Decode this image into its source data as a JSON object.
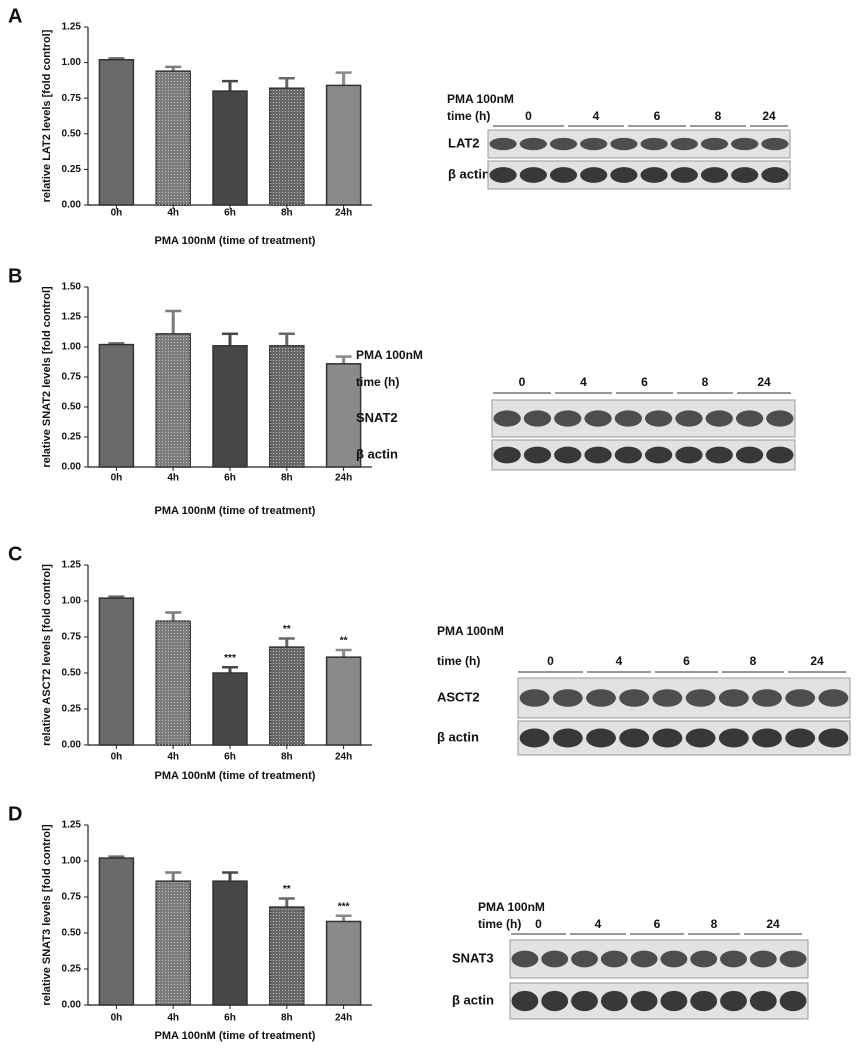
{
  "chart_data": [
    {
      "type": "bar",
      "label": "A",
      "ylabel": "relative LAT2 levels [fold control]",
      "xlabel": "PMA 100nM (time of treatment)",
      "categories": [
        "0h",
        "4h",
        "6h",
        "8h",
        "24h"
      ],
      "values": [
        1.02,
        0.94,
        0.8,
        0.82,
        0.84
      ],
      "errors": [
        0.01,
        0.03,
        0.07,
        0.07,
        0.09
      ],
      "colors": [
        "#6a6a6a",
        "#7c7c7c",
        "#474747",
        "#676767",
        "#8a8a8a"
      ],
      "ylim": [
        0,
        1.25
      ],
      "yticks": [
        {
          "value": 0,
          "label": "0.00"
        },
        {
          "value": 0.25,
          "label": "0.25"
        },
        {
          "value": 0.5,
          "label": "0.50"
        },
        {
          "value": 0.75,
          "label": "0.75"
        },
        {
          "value": 1,
          "label": "1.00"
        },
        {
          "value": 1.25,
          "label": "1.25"
        }
      ]
    },
    {
      "type": "bar",
      "label": "B",
      "ylabel": "relative SNAT2 levels [fold control]",
      "xlabel": "PMA 100nM (time of treatment)",
      "categories": [
        "0h",
        "4h",
        "6h",
        "8h",
        "24h"
      ],
      "values": [
        1.02,
        1.11,
        1.01,
        1.01,
        0.86
      ],
      "errors": [
        0.01,
        0.19,
        0.1,
        0.1,
        0.06
      ],
      "colors": [
        "#6a6a6a",
        "#7c7c7c",
        "#474747",
        "#676767",
        "#8a8a8a"
      ],
      "ylim": [
        0,
        1.5
      ],
      "yticks": [
        {
          "value": 0,
          "label": "0.00"
        },
        {
          "value": 0.25,
          "label": "0.25"
        },
        {
          "value": 0.5,
          "label": "0.50"
        },
        {
          "value": 0.75,
          "label": "0.75"
        },
        {
          "value": 1,
          "label": "1.00"
        },
        {
          "value": 1.25,
          "label": "1.25"
        },
        {
          "value": 1.5,
          "label": "1.50"
        }
      ]
    },
    {
      "type": "bar",
      "label": "C",
      "ylabel": "relative ASCT2 levels [fold control]",
      "xlabel": "PMA 100nM (time of treatment)",
      "categories": [
        "0h",
        "4h",
        "6h",
        "8h",
        "24h"
      ],
      "values": [
        1.02,
        0.86,
        0.5,
        0.68,
        0.61
      ],
      "errors": [
        0.01,
        0.06,
        0.04,
        0.06,
        0.05
      ],
      "annotations": [
        null,
        null,
        "***",
        "**",
        "**"
      ],
      "colors": [
        "#6a6a6a",
        "#7c7c7c",
        "#474747",
        "#676767",
        "#8a8a8a"
      ],
      "ylim": [
        0,
        1.25
      ],
      "yticks": [
        {
          "value": 0,
          "label": "0.00"
        },
        {
          "value": 0.25,
          "label": "0.25"
        },
        {
          "value": 0.5,
          "label": "0.50"
        },
        {
          "value": 0.75,
          "label": "0.75"
        },
        {
          "value": 1,
          "label": "1.00"
        },
        {
          "value": 1.25,
          "label": "1.25"
        }
      ]
    },
    {
      "type": "bar",
      "label": "D",
      "ylabel": "relative SNAT3 levels [fold control]",
      "xlabel": "PMA 100nM (time of treatment)",
      "categories": [
        "0h",
        "4h",
        "6h",
        "8h",
        "24h"
      ],
      "values": [
        1.02,
        0.86,
        0.86,
        0.68,
        0.58
      ],
      "errors": [
        0.01,
        0.06,
        0.06,
        0.06,
        0.04
      ],
      "annotations": [
        null,
        null,
        null,
        "**",
        "***"
      ],
      "colors": [
        "#6a6a6a",
        "#7c7c7c",
        "#474747",
        "#676767",
        "#8a8a8a"
      ],
      "ylim": [
        0,
        1.25
      ],
      "yticks": [
        {
          "value": 0,
          "label": "0.00"
        },
        {
          "value": 0.25,
          "label": "0.25"
        },
        {
          "value": 0.5,
          "label": "0.50"
        },
        {
          "value": 0.75,
          "label": "0.75"
        },
        {
          "value": 1,
          "label": "1.00"
        },
        {
          "value": 1.25,
          "label": "1.25"
        }
      ]
    }
  ],
  "blots": [
    {
      "treatment": "PMA 100nM",
      "time_label": "time (h)",
      "times": [
        "0",
        "4",
        "6",
        "8",
        "24"
      ],
      "rows": [
        "LAT2",
        "β actin"
      ]
    },
    {
      "treatment": "PMA 100nM",
      "time_label": "time (h)",
      "times": [
        "0",
        "4",
        "6",
        "8",
        "24"
      ],
      "rows": [
        "SNAT2",
        "β actin"
      ]
    },
    {
      "treatment": "PMA 100nM",
      "time_label": "time (h)",
      "times": [
        "0",
        "4",
        "6",
        "8",
        "24"
      ],
      "rows": [
        "ASCT2",
        "β actin"
      ]
    },
    {
      "treatment": "PMA 100nM",
      "time_label": "time (h)",
      "times": [
        "0",
        "4",
        "6",
        "8",
        "24"
      ],
      "rows": [
        "SNAT3",
        "β actin"
      ]
    }
  ]
}
